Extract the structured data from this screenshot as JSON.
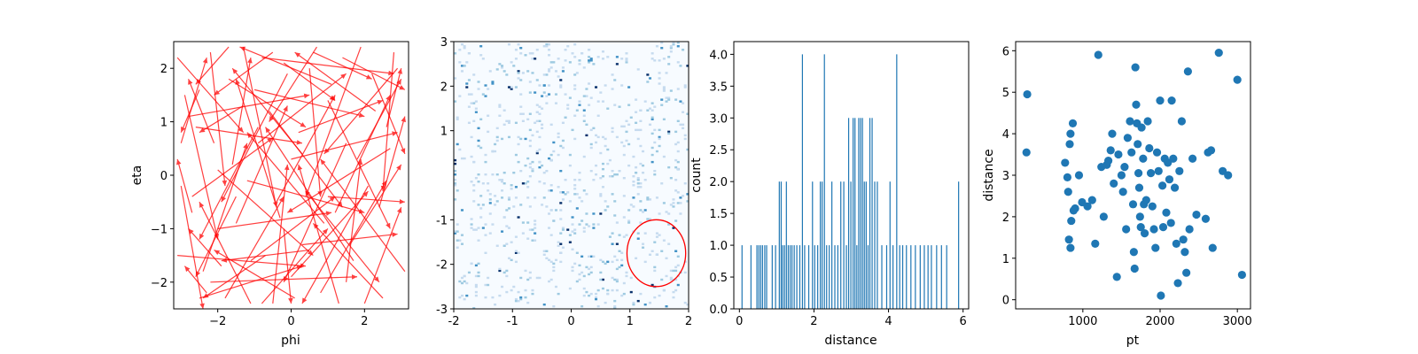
{
  "chart_data": [
    {
      "type": "quiver",
      "xlabel": "phi",
      "ylabel": "eta",
      "xlim": [
        -3.2,
        3.2
      ],
      "ylim": [
        -2.5,
        2.5
      ],
      "xticks": [
        -2,
        0,
        2
      ],
      "xtick_labels": [
        "−2",
        "0",
        "2"
      ],
      "yticks": [
        -2,
        -1,
        0,
        1,
        2
      ],
      "ytick_labels": [
        "−2",
        "−1",
        "0",
        "1",
        "2"
      ],
      "arrow_color": "#ff0000",
      "arrows": [
        [
          -3.1,
          2.2,
          1.8,
          -1.4
        ],
        [
          -2.9,
          1.5,
          0.9,
          -2.7
        ],
        [
          -2.7,
          -0.4,
          2.2,
          1.1
        ],
        [
          -2.6,
          0.9,
          2.9,
          -0.3
        ],
        [
          -2.4,
          -1.8,
          1.2,
          2.4
        ],
        [
          -2.2,
          2.3,
          0.4,
          -2.5
        ],
        [
          -2.0,
          0.1,
          2.6,
          -1.6
        ],
        [
          -1.8,
          -2.3,
          1.6,
          1.9
        ],
        [
          -1.7,
          1.8,
          2.1,
          -0.9
        ],
        [
          -1.5,
          -0.9,
          1.4,
          2.2
        ],
        [
          -1.3,
          2.4,
          0.9,
          -3.0
        ],
        [
          -1.1,
          -1.6,
          2.3,
          1.2
        ],
        [
          -0.9,
          0.6,
          2.4,
          1.3
        ],
        [
          -0.8,
          -2.4,
          1.8,
          1.4
        ],
        [
          -0.6,
          1.2,
          2.0,
          -1.8
        ],
        [
          -0.4,
          -0.5,
          1.6,
          2.0
        ],
        [
          -0.2,
          2.1,
          1.4,
          -0.7
        ],
        [
          0.0,
          -1.9,
          2.1,
          1.6
        ],
        [
          0.2,
          0.8,
          2.3,
          0.6
        ],
        [
          0.4,
          -0.3,
          2.0,
          -1.7
        ],
        [
          0.6,
          2.3,
          1.6,
          -0.5
        ],
        [
          0.8,
          -2.2,
          1.8,
          2.1
        ],
        [
          1.0,
          1.4,
          1.7,
          -2.4
        ],
        [
          1.2,
          -0.7,
          1.5,
          2.2
        ],
        [
          1.4,
          2.2,
          1.7,
          -0.6
        ],
        [
          1.6,
          -1.3,
          1.4,
          1.5
        ],
        [
          1.8,
          0.3,
          1.2,
          1.5
        ],
        [
          2.0,
          -2.4,
          1.0,
          1.8
        ],
        [
          2.2,
          1.9,
          0.9,
          -1.5
        ],
        [
          2.4,
          -0.6,
          0.7,
          1.7
        ],
        [
          3.1,
          -1.8,
          -2.3,
          2.1
        ],
        [
          2.9,
          2.0,
          -2.0,
          -1.6
        ],
        [
          2.7,
          0.5,
          -2.8,
          -1.2
        ],
        [
          2.5,
          -2.3,
          -1.9,
          1.4
        ],
        [
          2.3,
          1.2,
          -2.2,
          1.1
        ],
        [
          2.1,
          -0.2,
          -1.8,
          -2.2
        ],
        [
          1.9,
          2.4,
          -1.5,
          -2.8
        ],
        [
          1.7,
          -1.6,
          -2.4,
          2.5
        ],
        [
          1.5,
          0.6,
          -1.7,
          -2.6
        ],
        [
          1.3,
          -2.4,
          -1.1,
          2.6
        ],
        [
          1.1,
          1.7,
          -2.5,
          0.7
        ],
        [
          0.9,
          -0.9,
          -2.1,
          1.7
        ],
        [
          0.7,
          2.4,
          -1.3,
          -1.4
        ],
        [
          0.5,
          -1.4,
          -2.4,
          -0.2
        ],
        [
          0.3,
          0.4,
          -1.9,
          1.6
        ],
        [
          0.1,
          -2.3,
          -2.2,
          0.9
        ],
        [
          -0.1,
          1.9,
          -1.8,
          -2.4
        ],
        [
          -0.3,
          -0.8,
          -1.2,
          2.6
        ],
        [
          -0.5,
          2.3,
          -1.6,
          -0.8
        ],
        [
          -0.7,
          -1.5,
          -1.7,
          -0.8
        ],
        [
          -0.9,
          0.9,
          -1.6,
          -2.1
        ],
        [
          -1.1,
          -2.4,
          -1.4,
          1.9
        ],
        [
          -1.3,
          1.3,
          -1.2,
          -0.5
        ],
        [
          -1.5,
          -0.4,
          -1.1,
          -1.5
        ],
        [
          -1.7,
          2.4,
          -0.9,
          -0.7
        ],
        [
          -1.9,
          -1.7,
          -0.9,
          0.7
        ],
        [
          -2.1,
          0.6,
          -0.7,
          1.2
        ],
        [
          -2.3,
          -2.2,
          -0.6,
          0.5
        ],
        [
          -2.5,
          1.6,
          -0.5,
          -0.8
        ],
        [
          -2.7,
          -0.7,
          -0.4,
          1.0
        ],
        [
          -3.0,
          0.6,
          0.7,
          1.6
        ],
        [
          -2.5,
          -2.3,
          2.8,
          0.6
        ],
        [
          -1.6,
          0.2,
          0.5,
          2.0
        ],
        [
          -0.5,
          -2.4,
          0.4,
          2.6
        ],
        [
          0.5,
          2.0,
          0.3,
          -2.4
        ],
        [
          1.5,
          -2.0,
          0.4,
          2.3
        ],
        [
          2.6,
          0.9,
          0.4,
          1.1
        ],
        [
          -2.0,
          -1.0,
          3.1,
          0.3
        ],
        [
          -1.0,
          1.6,
          3.0,
          -0.5
        ],
        [
          0.3,
          -1.3,
          2.6,
          0.2
        ],
        [
          -3.1,
          -1.5,
          3.5,
          -0.2
        ],
        [
          -2.8,
          1.1,
          3.3,
          0.4
        ],
        [
          -1.2,
          -0.1,
          3.2,
          -0.6
        ],
        [
          0.0,
          0.3,
          2.9,
          0.5
        ],
        [
          -2.2,
          -2.0,
          4.0,
          0.1
        ],
        [
          -0.8,
          2.2,
          3.6,
          -0.3
        ],
        [
          1.0,
          -0.4,
          2.1,
          -0.1
        ],
        [
          -3.0,
          -0.2,
          0.6,
          -2.3
        ],
        [
          2.8,
          2.3,
          -0.3,
          -2.6
        ],
        [
          -0.2,
          -1.0,
          0.2,
          -1.4
        ]
      ]
    },
    {
      "type": "heatmap",
      "xlim": [
        -2,
        2
      ],
      "ylim": [
        -3,
        3
      ],
      "xticks": [
        -2,
        -1,
        0,
        1,
        2
      ],
      "xtick_labels": [
        "-2",
        "-1",
        "0",
        "1",
        "2"
      ],
      "yticks": [
        -3,
        -2,
        -1,
        1,
        2,
        3
      ],
      "ytick_labels": [
        "-3",
        "-2",
        "-1",
        "1",
        "2",
        "3"
      ],
      "bins": [
        100,
        150
      ],
      "colormap": [
        "#f7fbff",
        "#c6dbef",
        "#9ecae1",
        "#4292c6",
        "#2171b5",
        "#08306b"
      ],
      "circle": {
        "center": [
          1.45,
          -1.75
        ],
        "radius_x": 0.5,
        "radius_y": 0.75,
        "color": "#ff0000"
      }
    },
    {
      "type": "bar",
      "xlabel": "distance",
      "ylabel": "count",
      "xlim": [
        -0.15,
        6.15
      ],
      "ylim": [
        0,
        4.2
      ],
      "xticks": [
        0,
        2,
        4,
        6
      ],
      "xtick_labels": [
        "0",
        "2",
        "4",
        "6"
      ],
      "yticks": [
        0,
        0.5,
        1.0,
        1.5,
        2.0,
        2.5,
        3.0,
        3.5,
        4.0
      ],
      "ytick_labels": [
        "0.0",
        "0.5",
        "1.0",
        "1.5",
        "2.0",
        "2.5",
        "3.0",
        "3.5",
        "4.0"
      ],
      "bar_color": "#1f77b4",
      "bar_width": 0.028,
      "x": [
        0.07,
        0.31,
        0.47,
        0.52,
        0.57,
        0.62,
        0.68,
        0.73,
        0.88,
        0.97,
        1.07,
        1.12,
        1.16,
        1.21,
        1.26,
        1.31,
        1.36,
        1.41,
        1.47,
        1.54,
        1.62,
        1.69,
        1.75,
        1.86,
        1.96,
        2.02,
        2.1,
        2.17,
        2.22,
        2.28,
        2.34,
        2.41,
        2.48,
        2.56,
        2.64,
        2.72,
        2.8,
        2.87,
        2.93,
        2.99,
        3.05,
        3.1,
        3.15,
        3.2,
        3.25,
        3.3,
        3.35,
        3.4,
        3.45,
        3.5,
        3.56,
        3.63,
        3.7,
        3.82,
        3.95,
        4.04,
        4.12,
        4.22,
        4.3,
        4.38,
        4.48,
        4.6,
        4.72,
        4.85,
        4.96,
        5.06,
        5.15,
        5.29,
        5.42,
        5.56,
        5.88
      ],
      "values": [
        1,
        1,
        1,
        1,
        1,
        1,
        1,
        1,
        1,
        1,
        2,
        2,
        1,
        1,
        2,
        1,
        1,
        1,
        1,
        1,
        1,
        4,
        1,
        1,
        2,
        1,
        1,
        2,
        2,
        4,
        1,
        1,
        2,
        1,
        1,
        2,
        2,
        1,
        3,
        2,
        3,
        3,
        1,
        3,
        3,
        3,
        2,
        2,
        1,
        3,
        3,
        2,
        2,
        1,
        1,
        2,
        1,
        4,
        1,
        1,
        1,
        1,
        1,
        1,
        1,
        1,
        1,
        1,
        1,
        1,
        2
      ]
    },
    {
      "type": "scatter",
      "xlabel": "pt",
      "ylabel": "distance",
      "xlim": [
        130,
        3170
      ],
      "ylim": [
        -0.22,
        6.22
      ],
      "xticks": [
        1000,
        2000,
        3000
      ],
      "xtick_labels": [
        "1000",
        "2000",
        "3000"
      ],
      "yticks": [
        0,
        1,
        2,
        3,
        4,
        5,
        6
      ],
      "ytick_labels": [
        "0",
        "1",
        "2",
        "3",
        "4",
        "5",
        "6"
      ],
      "point_color": "#1f77b4",
      "points": [
        [
          280,
          4.95
        ],
        [
          270,
          3.55
        ],
        [
          770,
          3.3
        ],
        [
          800,
          2.95
        ],
        [
          810,
          2.6
        ],
        [
          830,
          3.75
        ],
        [
          840,
          4.0
        ],
        [
          850,
          1.9
        ],
        [
          820,
          1.45
        ],
        [
          840,
          1.25
        ],
        [
          870,
          4.25
        ],
        [
          880,
          2.15
        ],
        [
          900,
          2.2
        ],
        [
          950,
          3.0
        ],
        [
          990,
          2.35
        ],
        [
          1060,
          2.25
        ],
        [
          1120,
          2.4
        ],
        [
          1160,
          1.35
        ],
        [
          1200,
          5.9
        ],
        [
          1240,
          3.2
        ],
        [
          1270,
          2.0
        ],
        [
          1310,
          3.25
        ],
        [
          1330,
          3.35
        ],
        [
          1360,
          3.6
        ],
        [
          1380,
          4.0
        ],
        [
          1400,
          2.8
        ],
        [
          1440,
          0.55
        ],
        [
          1460,
          3.5
        ],
        [
          1500,
          3.0
        ],
        [
          1520,
          2.6
        ],
        [
          1540,
          3.2
        ],
        [
          1560,
          1.7
        ],
        [
          1580,
          3.9
        ],
        [
          1610,
          4.3
        ],
        [
          1630,
          3.55
        ],
        [
          1650,
          2.3
        ],
        [
          1660,
          1.15
        ],
        [
          1670,
          0.75
        ],
        [
          1680,
          5.6
        ],
        [
          1690,
          4.7
        ],
        [
          1700,
          4.25
        ],
        [
          1710,
          3.75
        ],
        [
          1720,
          3.05
        ],
        [
          1730,
          2.7
        ],
        [
          1740,
          2.0
        ],
        [
          1750,
          1.75
        ],
        [
          1760,
          4.15
        ],
        [
          1780,
          3.4
        ],
        [
          1790,
          2.3
        ],
        [
          1800,
          1.6
        ],
        [
          1820,
          2.4
        ],
        [
          1840,
          4.3
        ],
        [
          1860,
          3.65
        ],
        [
          1880,
          3.05
        ],
        [
          1900,
          2.25
        ],
        [
          1920,
          1.7
        ],
        [
          1940,
          1.25
        ],
        [
          1960,
          3.55
        ],
        [
          1980,
          3.1
        ],
        [
          2000,
          4.8
        ],
        [
          2010,
          0.1
        ],
        [
          2030,
          2.75
        ],
        [
          2040,
          1.75
        ],
        [
          2060,
          3.4
        ],
        [
          2080,
          2.1
        ],
        [
          2100,
          3.3
        ],
        [
          2120,
          2.9
        ],
        [
          2140,
          1.85
        ],
        [
          2150,
          4.8
        ],
        [
          2170,
          3.4
        ],
        [
          2190,
          2.7
        ],
        [
          2210,
          1.35
        ],
        [
          2230,
          0.4
        ],
        [
          2250,
          3.1
        ],
        [
          2280,
          4.3
        ],
        [
          2300,
          1.45
        ],
        [
          2320,
          1.15
        ],
        [
          2340,
          0.65
        ],
        [
          2360,
          5.5
        ],
        [
          2380,
          1.7
        ],
        [
          2420,
          3.4
        ],
        [
          2470,
          2.05
        ],
        [
          2590,
          1.95
        ],
        [
          2620,
          3.55
        ],
        [
          2660,
          3.6
        ],
        [
          2680,
          1.25
        ],
        [
          2760,
          5.95
        ],
        [
          2810,
          3.1
        ],
        [
          2880,
          3.0
        ],
        [
          3000,
          5.3
        ],
        [
          3060,
          0.6
        ]
      ]
    }
  ]
}
